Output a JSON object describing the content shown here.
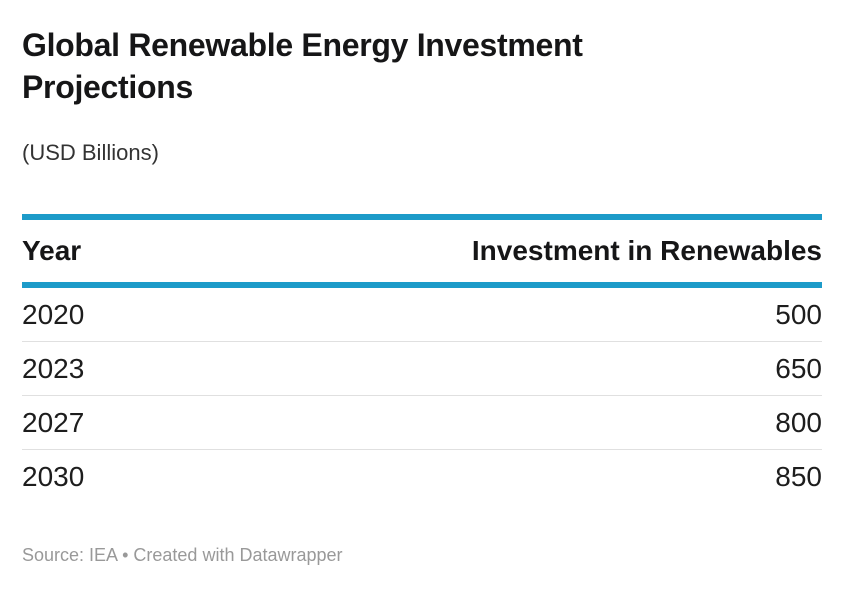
{
  "header": {
    "title": "Global Renewable Energy Investment Projections",
    "subtitle": "(USD Billions)"
  },
  "table": {
    "columns": [
      {
        "label": "Year",
        "align": "left"
      },
      {
        "label": "Investment in Renewables",
        "align": "right"
      }
    ],
    "rows": [
      [
        "2020",
        "500"
      ],
      [
        "2023",
        "650"
      ],
      [
        "2027",
        "800"
      ],
      [
        "2030",
        "850"
      ]
    ]
  },
  "footer": {
    "source_label": "Source: IEA",
    "separator": "•",
    "credit": "Created with Datawrapper"
  },
  "colors": {
    "accent": "#1d9bc9",
    "divider": "#e0e0e0",
    "text": "#1d1d1d",
    "muted": "#999999"
  },
  "chart_data": {
    "type": "table",
    "title": "Global Renewable Energy Investment Projections",
    "subtitle": "(USD Billions)",
    "columns": [
      "Year",
      "Investment in Renewables"
    ],
    "categories": [
      "2020",
      "2023",
      "2027",
      "2030"
    ],
    "values": [
      500,
      650,
      800,
      850
    ],
    "unit": "USD Billions",
    "source": "IEA"
  }
}
